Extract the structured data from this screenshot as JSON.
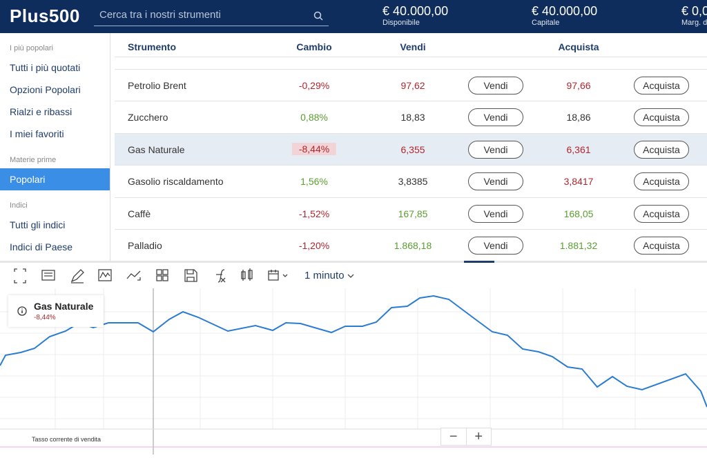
{
  "header": {
    "logo": "Plus500",
    "search_placeholder": "Cerca tra i nostri strumenti",
    "balances": [
      {
        "amount": "€ 40.000,00",
        "label": "Disponibile"
      },
      {
        "amount": "€ 40.000,00",
        "label": "Capitale"
      },
      {
        "amount": "€ 0,0",
        "label": "Marg. d"
      }
    ]
  },
  "sidebar": {
    "sections": [
      {
        "title": "I più popolari",
        "items": [
          "Tutti i più quotati",
          "Opzioni Popolari",
          "Rialzi e ribassi",
          "I miei favoriti"
        ]
      },
      {
        "title": "Materie prime",
        "items": [
          "Popolari"
        ],
        "selected": 0
      },
      {
        "title": "Indici",
        "items": [
          "Tutti gli indici",
          "Indici di Paese"
        ]
      }
    ]
  },
  "table": {
    "columns": [
      "Strumento",
      "Cambio",
      "Vendi",
      "Acquista"
    ],
    "sell_button": "Vendi",
    "buy_button": "Acquista",
    "rows": [
      {
        "name": "Petrolio Brent",
        "change": "-0,29%",
        "sell": "97,62",
        "buy": "97,66",
        "change_color": "#b0262c",
        "sell_color": "#b0262c",
        "buy_color": "#b0262c"
      },
      {
        "name": "Zucchero",
        "change": "0,88%",
        "sell": "18,83",
        "buy": "18,86",
        "change_color": "#5a9e2f",
        "sell_color": "#333333",
        "buy_color": "#333333"
      },
      {
        "name": "Gas Naturale",
        "change": "-8,44%",
        "sell": "6,355",
        "buy": "6,361",
        "change_color": "#b0262c",
        "sell_color": "#b0262c",
        "buy_color": "#b0262c",
        "selected": true
      },
      {
        "name": "Gasolio riscaldamento",
        "change": "1,56%",
        "sell": "3,8385",
        "buy": "3,8417",
        "change_color": "#5a9e2f",
        "sell_color": "#333333",
        "buy_color": "#b0262c"
      },
      {
        "name": "Caffè",
        "change": "-1,52%",
        "sell": "167,85",
        "buy": "168,05",
        "change_color": "#b0262c",
        "sell_color": "#5a9e2f",
        "buy_color": "#5a9e2f"
      },
      {
        "name": "Palladio",
        "change": "-1,20%",
        "sell": "1.868,18",
        "buy": "1.881,32",
        "change_color": "#b0262c",
        "sell_color": "#5a9e2f",
        "buy_color": "#5a9e2f"
      }
    ]
  },
  "toolbar": {
    "timeframe": "1 minuto"
  },
  "chart": {
    "legend_title": "Gas Naturale",
    "legend_change": "-8,44%",
    "footer_label": "Tasso corrente di vendita",
    "zoom_out": "−",
    "zoom_in": "+"
  }
}
